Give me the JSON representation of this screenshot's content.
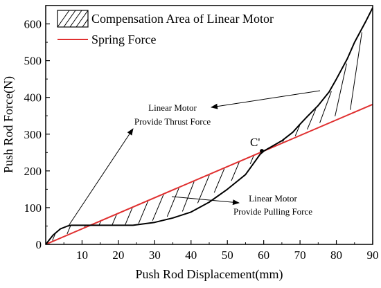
{
  "chart_data": {
    "type": "line",
    "xlabel": "Push Rod Displacement(mm)",
    "ylabel": "Push Rod Force(N)",
    "xlim": [
      0,
      90
    ],
    "ylim": [
      0,
      650
    ],
    "xticks": [
      10,
      20,
      30,
      40,
      50,
      60,
      70,
      80,
      90
    ],
    "yticks": [
      0,
      100,
      200,
      300,
      400,
      500,
      600
    ],
    "grid": false,
    "legend_position": "top-left",
    "legend": [
      {
        "label": "Compensation Area of Linear Motor",
        "style": "hatch"
      },
      {
        "label": "Spring Force",
        "style": "line",
        "color": "#e03030"
      }
    ],
    "series": [
      {
        "name": "Spring Force",
        "color": "#e03030",
        "x": [
          0,
          90
        ],
        "y": [
          0,
          381
        ]
      },
      {
        "color": "#000000",
        "x": [
          0,
          2,
          4,
          6,
          7,
          10,
          15,
          20,
          24,
          30,
          35,
          40,
          45,
          50,
          55,
          59,
          60,
          62,
          65,
          68,
          70,
          72,
          75,
          78,
          80,
          83,
          85,
          88,
          90
        ],
        "y": [
          0,
          25,
          42,
          50,
          52,
          52,
          52,
          52,
          52,
          60,
          72,
          88,
          115,
          150,
          190,
          245,
          254,
          265,
          282,
          305,
          327,
          348,
          378,
          415,
          450,
          505,
          550,
          605,
          644
        ]
      }
    ],
    "annotations": [
      {
        "text_lines": [
          "Linear Motor",
          "Provide Thrust Force"
        ]
      },
      {
        "text_lines": [
          "Linear Motor",
          "Provide Pulling Force"
        ]
      },
      {
        "text": "C'",
        "x": 59.5,
        "y": 254
      }
    ]
  }
}
